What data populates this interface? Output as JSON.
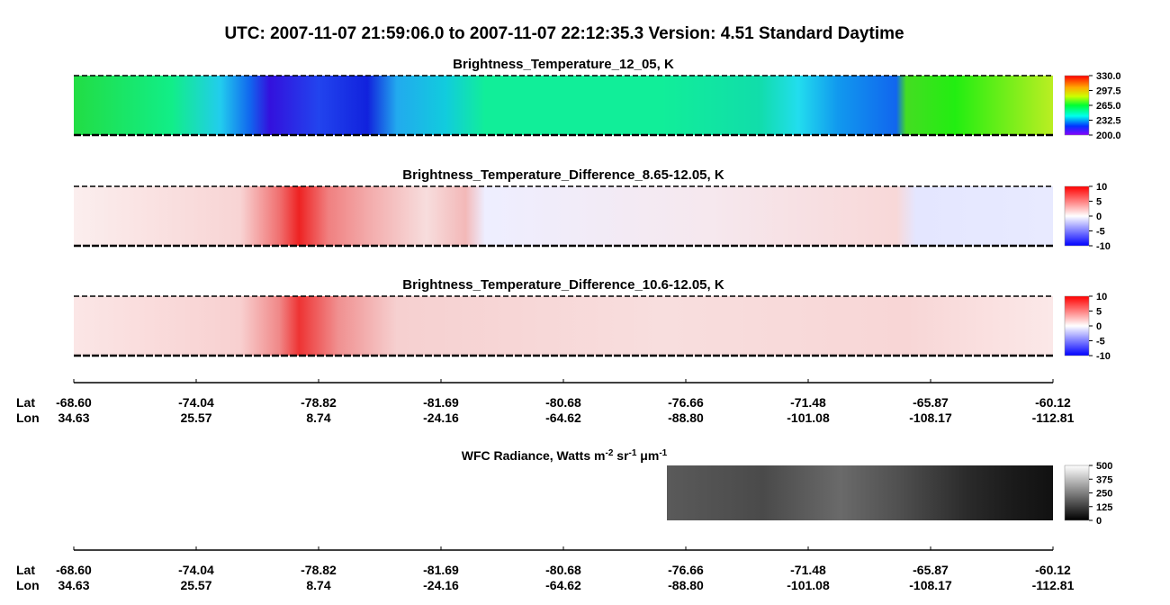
{
  "header": {
    "title": "UTC:  2007-11-07   21:59:06.0  to  2007-11-07   22:12:35.3    Version: 4.51  Standard Daytime"
  },
  "panels": [
    {
      "title": "Brightness_Temperature_12_05, K",
      "colormap": "rainbow",
      "colorbar_ticks": [
        {
          "value": 330,
          "label": "330.0"
        },
        {
          "value": 297.5,
          "label": "297.5"
        },
        {
          "value": 265,
          "label": "265.0"
        },
        {
          "value": 232.5,
          "label": "232.5"
        },
        {
          "value": 200,
          "label": "200.0"
        }
      ]
    },
    {
      "title": "Brightness_Temperature_Difference_8.65-12.05, K",
      "colormap": "bwr",
      "colorbar_ticks": [
        10,
        5,
        0,
        -5,
        -10
      ]
    },
    {
      "title": "Brightness_Temperature_Difference_10.6-12.05, K",
      "colormap": "bwr",
      "colorbar_ticks": [
        10,
        5,
        0,
        -5,
        -10
      ]
    }
  ],
  "axis": {
    "row_labels": [
      "Lat",
      "Lon"
    ],
    "ticks": [
      {
        "lat": "-68.60",
        "lon": "34.63"
      },
      {
        "lat": "-74.04",
        "lon": "25.57"
      },
      {
        "lat": "-78.82",
        "lon": "8.74"
      },
      {
        "lat": "-81.69",
        "lon": "-24.16"
      },
      {
        "lat": "-80.68",
        "lon": "-64.62"
      },
      {
        "lat": "-76.66",
        "lon": "-88.80"
      },
      {
        "lat": "-71.48",
        "lon": "-101.08"
      },
      {
        "lat": "-65.87",
        "lon": "-108.17"
      },
      {
        "lat": "-60.12",
        "lon": "-112.81"
      }
    ]
  },
  "wfc": {
    "title": [
      {
        "text": "WFC Radiance, Watts m"
      },
      {
        "sup": "-2"
      },
      {
        "text": " sr"
      },
      {
        "sup": "-1"
      },
      {
        "text": " μm"
      },
      {
        "sup": "-1"
      }
    ],
    "colormap": "gray",
    "colorbar_ticks": [
      500,
      375,
      250,
      125,
      0
    ]
  }
}
